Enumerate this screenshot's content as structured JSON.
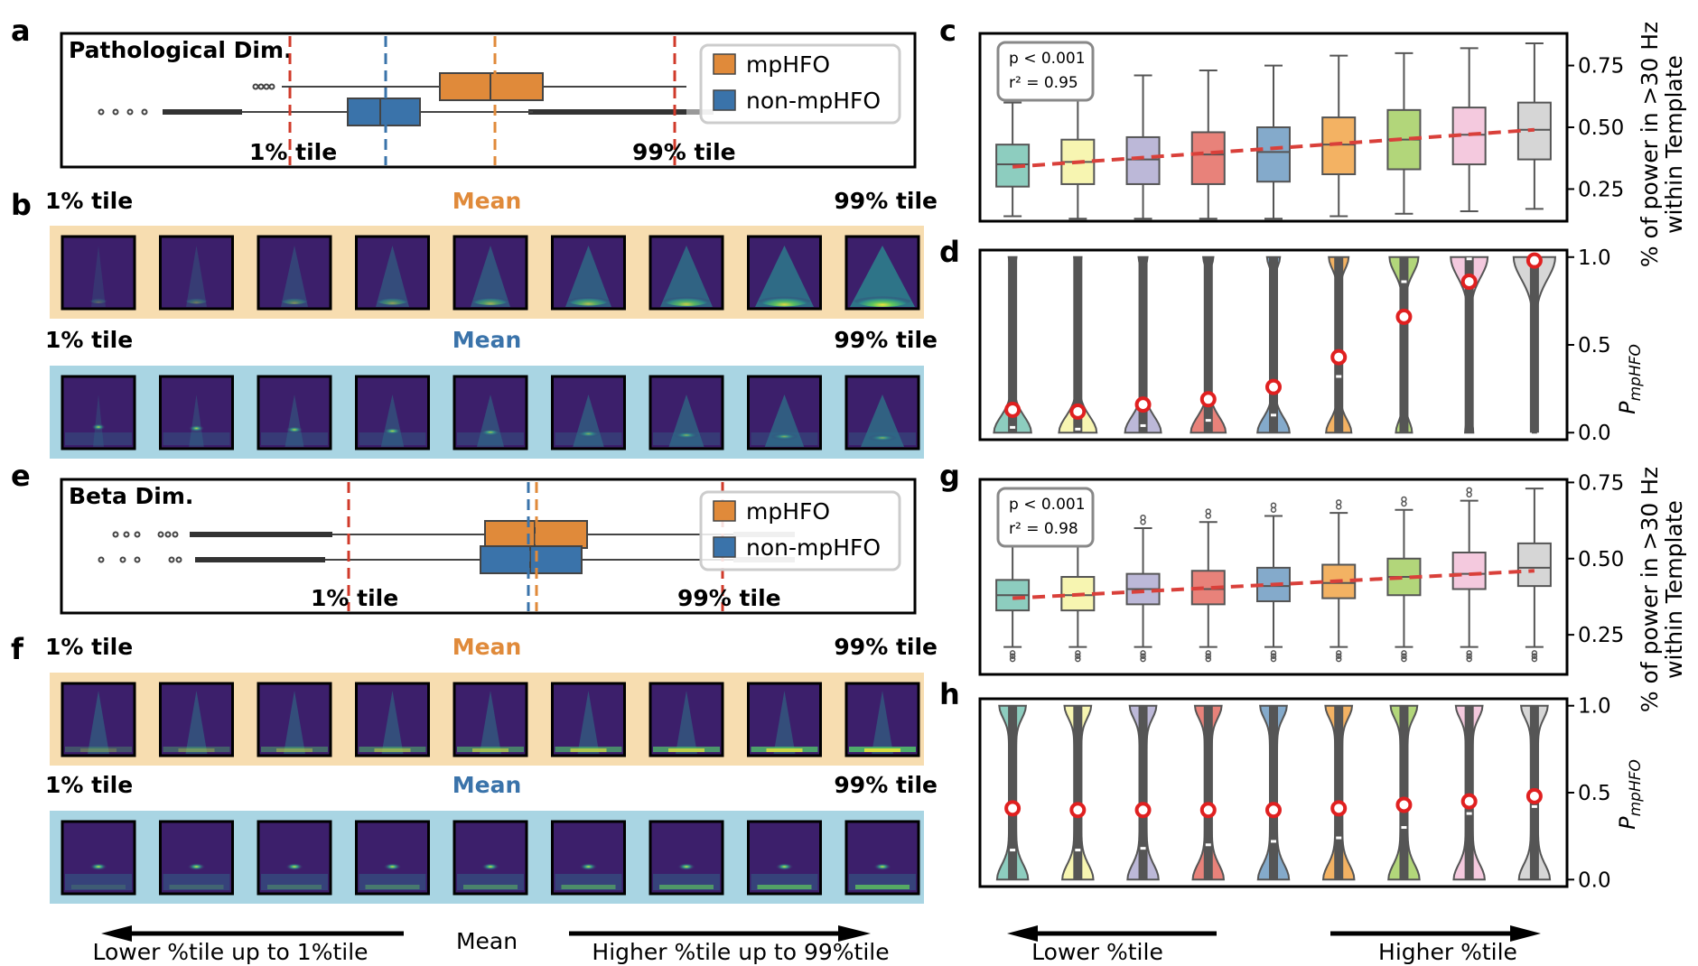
{
  "panel_labels": {
    "a": "a",
    "b": "b",
    "c": "c",
    "d": "d",
    "e": "e",
    "f": "f",
    "g": "g",
    "h": "h"
  },
  "colors": {
    "mphfo": "#e08a3a",
    "non_mphfo": "#3a73aa",
    "tile_line": "#d03a2a",
    "strip_orange": "#f7ddb0",
    "strip_blue": "#a9d5e3",
    "group_palette": [
      "#8dcdbf",
      "#f7f5b1",
      "#bcb8d8",
      "#e8827a",
      "#84aacb",
      "#f3b263",
      "#b2d67a",
      "#f4c9de",
      "#d6d6d6"
    ]
  },
  "panel_a": {
    "title": "Pathological Dim.",
    "legend": [
      "mpHFO",
      "non-mpHFO"
    ],
    "label_1pct": "1% tile",
    "label_99pct": "99% tile"
  },
  "panel_e": {
    "title": "Beta Dim.",
    "legend": [
      "mpHFO",
      "non-mpHFO"
    ],
    "label_1pct": "1% tile",
    "label_99pct": "99% tile"
  },
  "strips": {
    "left": "1% tile",
    "center": "Mean",
    "right": "99% tile"
  },
  "bottom_left": {
    "lower": "Lower %tile up to 1%tile",
    "mean": "Mean",
    "higher": "Higher %tile up to 99%tile"
  },
  "bottom_right": {
    "lower": "Lower %tile",
    "higher": "Higher %tile"
  },
  "chart_data": [
    {
      "panel": "c",
      "type": "box",
      "ylabel_line1": "% of power in >30 Hz",
      "ylabel_line2": "within Template",
      "yticks": [
        0.25,
        0.5,
        0.75
      ],
      "ylim": [
        0.12,
        0.88
      ],
      "stat_line1": "p < 0.001",
      "stat_line2": "r² = 0.95",
      "groups": [
        {
          "q1": 0.26,
          "median": 0.35,
          "q3": 0.43,
          "whislo": 0.14,
          "whishi": 0.6
        },
        {
          "q1": 0.27,
          "median": 0.36,
          "q3": 0.45,
          "whislo": 0.13,
          "whishi": 0.65
        },
        {
          "q1": 0.27,
          "median": 0.37,
          "q3": 0.46,
          "whislo": 0.13,
          "whishi": 0.71
        },
        {
          "q1": 0.27,
          "median": 0.39,
          "q3": 0.48,
          "whislo": 0.13,
          "whishi": 0.73
        },
        {
          "q1": 0.28,
          "median": 0.4,
          "q3": 0.5,
          "whislo": 0.13,
          "whishi": 0.75
        },
        {
          "q1": 0.31,
          "median": 0.43,
          "q3": 0.54,
          "whislo": 0.14,
          "whishi": 0.79
        },
        {
          "q1": 0.33,
          "median": 0.45,
          "q3": 0.57,
          "whislo": 0.15,
          "whishi": 0.8
        },
        {
          "q1": 0.35,
          "median": 0.47,
          "q3": 0.58,
          "whislo": 0.16,
          "whishi": 0.82
        },
        {
          "q1": 0.37,
          "median": 0.49,
          "q3": 0.6,
          "whislo": 0.17,
          "whishi": 0.84
        }
      ],
      "trend": [
        0.34,
        0.49
      ]
    },
    {
      "panel": "d",
      "type": "violin",
      "ylabel": "P",
      "ylabel_sub": "mpHFO",
      "yticks": [
        0.0,
        0.5,
        1.0
      ],
      "ylim": [
        -0.04,
        1.04
      ],
      "means": [
        0.13,
        0.12,
        0.16,
        0.19,
        0.26,
        0.43,
        0.66,
        0.86,
        0.98
      ],
      "medians": [
        0.03,
        0.02,
        0.04,
        0.07,
        0.1,
        0.32,
        0.86,
        0.99,
        1.0
      ]
    },
    {
      "panel": "g",
      "type": "box",
      "ylabel_line1": "% of power in >30 Hz",
      "ylabel_line2": "within Template",
      "yticks": [
        0.25,
        0.5,
        0.75
      ],
      "ylim": [
        0.12,
        0.76
      ],
      "stat_line1": "p < 0.001",
      "stat_line2": "r² = 0.98",
      "groups": [
        {
          "q1": 0.33,
          "median": 0.38,
          "q3": 0.43,
          "whislo": 0.21,
          "whishi": 0.55
        },
        {
          "q1": 0.33,
          "median": 0.38,
          "q3": 0.44,
          "whislo": 0.21,
          "whishi": 0.57
        },
        {
          "q1": 0.35,
          "median": 0.4,
          "q3": 0.45,
          "whislo": 0.21,
          "whishi": 0.6
        },
        {
          "q1": 0.35,
          "median": 0.4,
          "q3": 0.46,
          "whislo": 0.21,
          "whishi": 0.62
        },
        {
          "q1": 0.36,
          "median": 0.41,
          "q3": 0.47,
          "whislo": 0.21,
          "whishi": 0.64
        },
        {
          "q1": 0.37,
          "median": 0.42,
          "q3": 0.48,
          "whislo": 0.21,
          "whishi": 0.65
        },
        {
          "q1": 0.38,
          "median": 0.44,
          "q3": 0.5,
          "whislo": 0.21,
          "whishi": 0.66
        },
        {
          "q1": 0.4,
          "median": 0.45,
          "q3": 0.52,
          "whislo": 0.21,
          "whishi": 0.69
        },
        {
          "q1": 0.41,
          "median": 0.47,
          "q3": 0.55,
          "whislo": 0.21,
          "whishi": 0.73
        }
      ],
      "trend": [
        0.37,
        0.46
      ]
    },
    {
      "panel": "h",
      "type": "violin",
      "ylabel": "P",
      "ylabel_sub": "mpHFO",
      "yticks": [
        0.0,
        0.5,
        1.0
      ],
      "ylim": [
        -0.04,
        1.04
      ],
      "means": [
        0.41,
        0.4,
        0.4,
        0.4,
        0.4,
        0.41,
        0.43,
        0.45,
        0.48
      ],
      "medians": [
        0.17,
        0.17,
        0.18,
        0.2,
        0.22,
        0.24,
        0.3,
        0.38,
        0.42
      ]
    }
  ]
}
